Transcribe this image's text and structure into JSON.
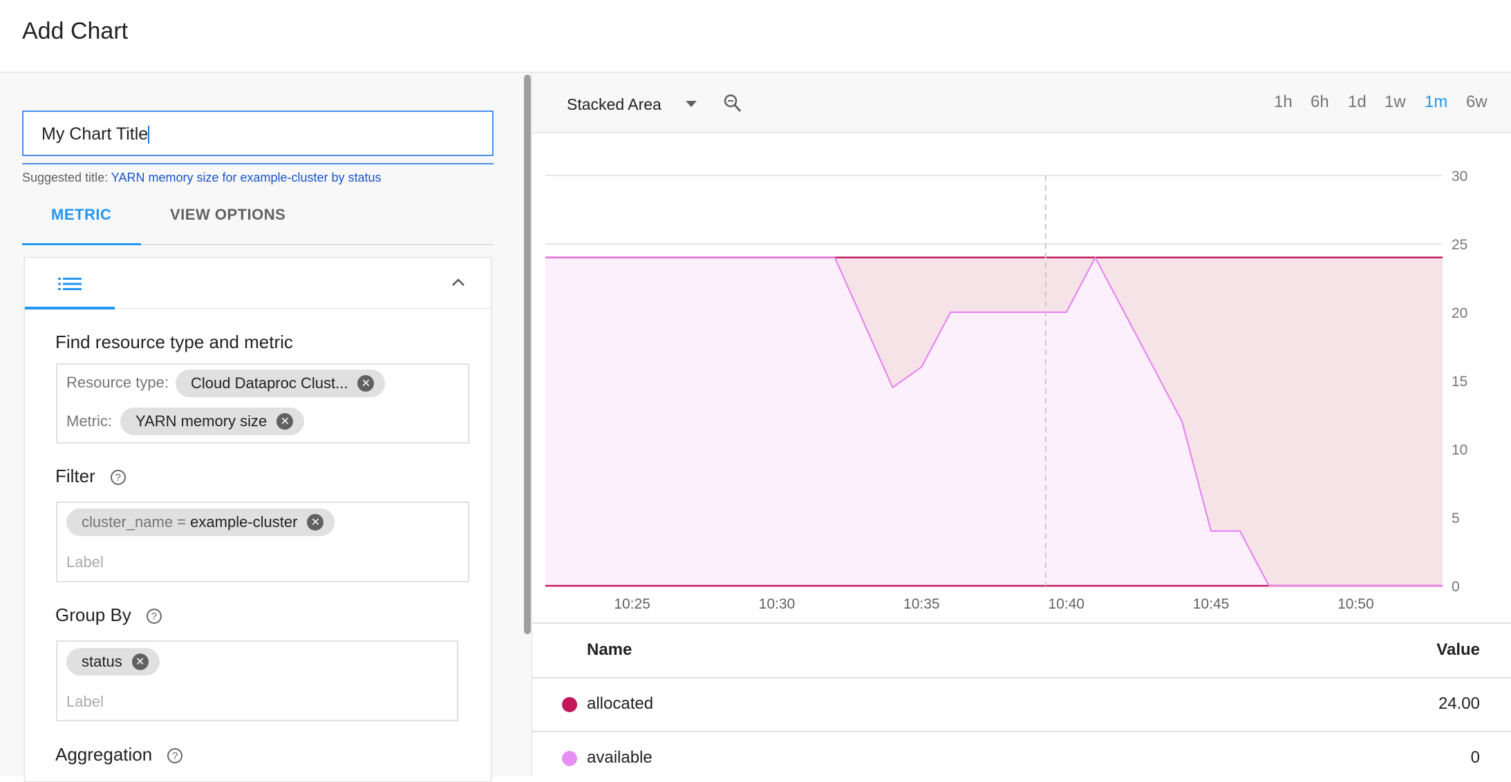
{
  "header": {
    "title": "Add Chart"
  },
  "editor": {
    "title_value": "My Chart Title",
    "suggested_prefix": "Suggested title:",
    "suggested_title": "YARN memory size for example-cluster by status",
    "tabs": [
      {
        "label": "METRIC",
        "active": true
      },
      {
        "label": "VIEW OPTIONS",
        "active": false
      }
    ],
    "find_heading": "Find resource type and metric",
    "resource_label": "Resource type:",
    "resource_value": "Cloud Dataproc Clust...",
    "metric_label": "Metric:",
    "metric_value": "YARN memory size",
    "filter_heading": "Filter",
    "filter_chip_key": "cluster_name =",
    "filter_chip_value": "example-cluster",
    "filter_placeholder": "Label",
    "groupby_heading": "Group By",
    "groupby_chip": "status",
    "groupby_placeholder": "Label",
    "aggregation_heading": "Aggregation"
  },
  "toolbar": {
    "chart_type": "Stacked Area",
    "ranges": [
      "1h",
      "6h",
      "1d",
      "1w",
      "1m",
      "6w"
    ],
    "active_range": "1m",
    "accent": "#2196f3"
  },
  "chart_data": {
    "type": "area",
    "stacked": true,
    "x_ticks": [
      "10:25",
      "10:30",
      "10:35",
      "10:40",
      "10:45",
      "10:50"
    ],
    "y_ticks": [
      "0",
      "5",
      "10",
      "15",
      "20",
      "25",
      "30"
    ],
    "ylim": [
      0,
      30
    ],
    "xlim": [
      "10:22",
      "10:53"
    ],
    "grid": true,
    "y_axis_side": "right",
    "cursor_time": "10:39",
    "x": [
      "10:22",
      "10:32",
      "10:34",
      "10:35",
      "10:36",
      "10:40",
      "10:41",
      "10:42",
      "10:43",
      "10:44",
      "10:45",
      "10:46",
      "10:47",
      "10:53"
    ],
    "series": [
      {
        "name": "available",
        "color": "#e57ff0",
        "values": [
          24,
          24,
          14.5,
          16,
          20,
          20,
          24,
          20,
          16,
          12,
          4,
          4,
          0,
          0
        ]
      },
      {
        "name": "allocated",
        "color": "#c2185b",
        "values": [
          0,
          0,
          9.5,
          8,
          4,
          4,
          0,
          4,
          8,
          12,
          20,
          20,
          24,
          24
        ]
      }
    ]
  },
  "table": {
    "headers": {
      "name": "Name",
      "value": "Value"
    },
    "rows": [
      {
        "name": "allocated",
        "value": "24.00",
        "color": "#c2185b"
      },
      {
        "name": "available",
        "value": "0",
        "color": "#e88ff5"
      }
    ]
  }
}
